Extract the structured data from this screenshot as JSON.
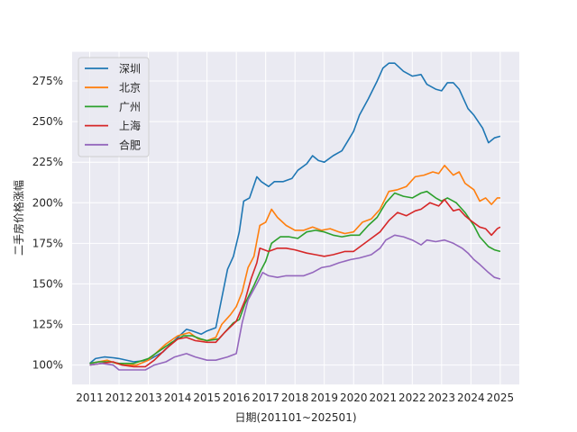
{
  "chart_data": {
    "type": "line",
    "xlabel": "日期(201101~202501)",
    "ylabel": "二手房价格涨幅",
    "x_ticks": [
      "2011",
      "2012",
      "2013",
      "2014",
      "2015",
      "2016",
      "2017",
      "2018",
      "2019",
      "2020",
      "2021",
      "2022",
      "2023",
      "2024",
      "2025"
    ],
    "y_ticks": [
      "100%",
      "125%",
      "150%",
      "175%",
      "200%",
      "225%",
      "250%",
      "275%"
    ],
    "ylim": [
      88,
      293
    ],
    "xlim": [
      2010.4,
      2025.65
    ],
    "grid": true,
    "background": "#eaeaf2",
    "legend_position": "top-left",
    "series": [
      {
        "name": "深圳",
        "color": "#1f77b4",
        "points": [
          [
            2011.0,
            101
          ],
          [
            2011.2,
            104
          ],
          [
            2011.5,
            105
          ],
          [
            2011.8,
            104.5
          ],
          [
            2012.0,
            104
          ],
          [
            2012.5,
            102
          ],
          [
            2013.0,
            103
          ],
          [
            2013.5,
            108
          ],
          [
            2014.0,
            117
          ],
          [
            2014.3,
            122
          ],
          [
            2014.5,
            121
          ],
          [
            2014.8,
            119
          ],
          [
            2015.0,
            121
          ],
          [
            2015.3,
            123
          ],
          [
            2015.5,
            141
          ],
          [
            2015.7,
            159
          ],
          [
            2015.9,
            167
          ],
          [
            2016.1,
            182
          ],
          [
            2016.25,
            201
          ],
          [
            2016.45,
            203
          ],
          [
            2016.7,
            216
          ],
          [
            2016.85,
            213
          ],
          [
            2017.1,
            210
          ],
          [
            2017.3,
            213
          ],
          [
            2017.6,
            213
          ],
          [
            2017.9,
            215
          ],
          [
            2018.1,
            220
          ],
          [
            2018.4,
            224
          ],
          [
            2018.6,
            229
          ],
          [
            2018.8,
            226
          ],
          [
            2019.0,
            225
          ],
          [
            2019.3,
            229
          ],
          [
            2019.6,
            232
          ],
          [
            2019.8,
            238
          ],
          [
            2020.0,
            244
          ],
          [
            2020.2,
            254
          ],
          [
            2020.5,
            264
          ],
          [
            2020.8,
            275
          ],
          [
            2021.0,
            283
          ],
          [
            2021.2,
            286
          ],
          [
            2021.4,
            286
          ],
          [
            2021.7,
            281
          ],
          [
            2022.0,
            278
          ],
          [
            2022.3,
            279
          ],
          [
            2022.5,
            273
          ],
          [
            2022.8,
            270
          ],
          [
            2023.0,
            269
          ],
          [
            2023.2,
            274
          ],
          [
            2023.4,
            274
          ],
          [
            2023.6,
            270
          ],
          [
            2023.9,
            258
          ],
          [
            2024.1,
            254
          ],
          [
            2024.4,
            246
          ],
          [
            2024.6,
            237
          ],
          [
            2024.8,
            240
          ],
          [
            2025.0,
            241
          ]
        ]
      },
      {
        "name": "北京",
        "color": "#ff7f0e",
        "points": [
          [
            2011.0,
            101
          ],
          [
            2011.3,
            102
          ],
          [
            2011.6,
            103
          ],
          [
            2011.9,
            101
          ],
          [
            2012.2,
            100
          ],
          [
            2012.6,
            100
          ],
          [
            2013.0,
            103
          ],
          [
            2013.3,
            108
          ],
          [
            2013.6,
            113
          ],
          [
            2014.0,
            118
          ],
          [
            2014.4,
            120
          ],
          [
            2014.7,
            116
          ],
          [
            2015.0,
            115
          ],
          [
            2015.3,
            117
          ],
          [
            2015.5,
            125
          ],
          [
            2015.8,
            131
          ],
          [
            2016.0,
            136
          ],
          [
            2016.2,
            145
          ],
          [
            2016.4,
            160
          ],
          [
            2016.6,
            167
          ],
          [
            2016.8,
            186
          ],
          [
            2017.0,
            188
          ],
          [
            2017.2,
            196
          ],
          [
            2017.4,
            191
          ],
          [
            2017.7,
            186
          ],
          [
            2018.0,
            183
          ],
          [
            2018.3,
            183
          ],
          [
            2018.6,
            185
          ],
          [
            2018.9,
            183
          ],
          [
            2019.2,
            184
          ],
          [
            2019.5,
            182
          ],
          [
            2019.7,
            181
          ],
          [
            2020.0,
            182
          ],
          [
            2020.3,
            188
          ],
          [
            2020.6,
            190
          ],
          [
            2020.9,
            196
          ],
          [
            2021.2,
            207
          ],
          [
            2021.5,
            208
          ],
          [
            2021.8,
            210
          ],
          [
            2022.1,
            216
          ],
          [
            2022.4,
            217
          ],
          [
            2022.7,
            219
          ],
          [
            2022.9,
            218
          ],
          [
            2023.1,
            223
          ],
          [
            2023.4,
            217
          ],
          [
            2023.6,
            219
          ],
          [
            2023.8,
            212
          ],
          [
            2024.1,
            208
          ],
          [
            2024.3,
            201
          ],
          [
            2024.5,
            203
          ],
          [
            2024.7,
            199
          ],
          [
            2024.9,
            203
          ],
          [
            2025.0,
            203
          ]
        ]
      },
      {
        "name": "广州",
        "color": "#2ca02c",
        "points": [
          [
            2011.0,
            101
          ],
          [
            2011.3,
            102
          ],
          [
            2011.7,
            102
          ],
          [
            2012.0,
            101
          ],
          [
            2012.5,
            101
          ],
          [
            2013.0,
            104
          ],
          [
            2013.4,
            109
          ],
          [
            2013.8,
            114
          ],
          [
            2014.2,
            118
          ],
          [
            2014.5,
            118
          ],
          [
            2014.8,
            116
          ],
          [
            2015.0,
            115
          ],
          [
            2015.4,
            116
          ],
          [
            2015.6,
            120
          ],
          [
            2015.9,
            126
          ],
          [
            2016.1,
            128
          ],
          [
            2016.3,
            138
          ],
          [
            2016.6,
            149
          ],
          [
            2016.8,
            157
          ],
          [
            2017.0,
            164
          ],
          [
            2017.2,
            175
          ],
          [
            2017.5,
            179
          ],
          [
            2017.8,
            179
          ],
          [
            2018.1,
            178
          ],
          [
            2018.4,
            182
          ],
          [
            2018.7,
            183
          ],
          [
            2019.0,
            182
          ],
          [
            2019.3,
            180
          ],
          [
            2019.6,
            179
          ],
          [
            2019.9,
            180
          ],
          [
            2020.2,
            180
          ],
          [
            2020.5,
            186
          ],
          [
            2020.8,
            191
          ],
          [
            2021.1,
            200
          ],
          [
            2021.4,
            206
          ],
          [
            2021.7,
            204
          ],
          [
            2022.0,
            203
          ],
          [
            2022.3,
            206
          ],
          [
            2022.5,
            207
          ],
          [
            2022.8,
            203
          ],
          [
            2023.0,
            201
          ],
          [
            2023.2,
            203
          ],
          [
            2023.5,
            200
          ],
          [
            2023.8,
            194
          ],
          [
            2024.1,
            186
          ],
          [
            2024.3,
            179
          ],
          [
            2024.6,
            173
          ],
          [
            2024.8,
            171
          ],
          [
            2025.0,
            170
          ]
        ]
      },
      {
        "name": "上海",
        "color": "#d62728",
        "points": [
          [
            2011.0,
            100
          ],
          [
            2011.4,
            101
          ],
          [
            2011.8,
            102
          ],
          [
            2012.1,
            100
          ],
          [
            2012.5,
            99
          ],
          [
            2012.9,
            99
          ],
          [
            2013.2,
            103
          ],
          [
            2013.6,
            110
          ],
          [
            2014.0,
            116
          ],
          [
            2014.3,
            117
          ],
          [
            2014.6,
            115
          ],
          [
            2015.0,
            114
          ],
          [
            2015.3,
            114
          ],
          [
            2015.6,
            120
          ],
          [
            2016.0,
            127
          ],
          [
            2016.3,
            140
          ],
          [
            2016.5,
            153
          ],
          [
            2016.7,
            163
          ],
          [
            2016.8,
            172
          ],
          [
            2017.1,
            170
          ],
          [
            2017.4,
            172
          ],
          [
            2017.7,
            172
          ],
          [
            2018.0,
            171
          ],
          [
            2018.4,
            169
          ],
          [
            2018.7,
            168
          ],
          [
            2019.0,
            167
          ],
          [
            2019.3,
            168
          ],
          [
            2019.7,
            170
          ],
          [
            2020.0,
            170
          ],
          [
            2020.3,
            174
          ],
          [
            2020.6,
            178
          ],
          [
            2020.9,
            182
          ],
          [
            2021.2,
            189
          ],
          [
            2021.5,
            194
          ],
          [
            2021.8,
            192
          ],
          [
            2022.1,
            195
          ],
          [
            2022.3,
            196
          ],
          [
            2022.6,
            200
          ],
          [
            2022.9,
            198
          ],
          [
            2023.1,
            202
          ],
          [
            2023.4,
            195
          ],
          [
            2023.6,
            196
          ],
          [
            2023.8,
            192
          ],
          [
            2024.0,
            189
          ],
          [
            2024.3,
            185
          ],
          [
            2024.5,
            184
          ],
          [
            2024.7,
            180
          ],
          [
            2024.9,
            184
          ],
          [
            2025.0,
            185
          ]
        ]
      },
      {
        "name": "合肥",
        "color": "#9467bd",
        "points": [
          [
            2011.0,
            100
          ],
          [
            2011.4,
            101
          ],
          [
            2011.8,
            100
          ],
          [
            2012.0,
            97
          ],
          [
            2012.3,
            97
          ],
          [
            2012.6,
            97
          ],
          [
            2012.9,
            97
          ],
          [
            2013.2,
            100
          ],
          [
            2013.6,
            102
          ],
          [
            2013.9,
            105
          ],
          [
            2014.3,
            107
          ],
          [
            2014.6,
            105
          ],
          [
            2015.0,
            103
          ],
          [
            2015.3,
            103
          ],
          [
            2015.7,
            105
          ],
          [
            2016.0,
            107
          ],
          [
            2016.2,
            126
          ],
          [
            2016.4,
            140
          ],
          [
            2016.7,
            150
          ],
          [
            2016.9,
            157
          ],
          [
            2017.1,
            155
          ],
          [
            2017.4,
            154
          ],
          [
            2017.7,
            155
          ],
          [
            2018.0,
            155
          ],
          [
            2018.3,
            155
          ],
          [
            2018.6,
            157
          ],
          [
            2018.9,
            160
          ],
          [
            2019.2,
            161
          ],
          [
            2019.5,
            163
          ],
          [
            2019.9,
            165
          ],
          [
            2020.2,
            166
          ],
          [
            2020.6,
            168
          ],
          [
            2020.9,
            172
          ],
          [
            2021.1,
            177
          ],
          [
            2021.4,
            180
          ],
          [
            2021.7,
            179
          ],
          [
            2022.0,
            177
          ],
          [
            2022.3,
            174
          ],
          [
            2022.5,
            177
          ],
          [
            2022.8,
            176
          ],
          [
            2023.1,
            177
          ],
          [
            2023.4,
            175
          ],
          [
            2023.7,
            172
          ],
          [
            2023.9,
            169
          ],
          [
            2024.1,
            165
          ],
          [
            2024.3,
            162
          ],
          [
            2024.6,
            157
          ],
          [
            2024.8,
            154
          ],
          [
            2025.0,
            153
          ]
        ]
      }
    ]
  }
}
